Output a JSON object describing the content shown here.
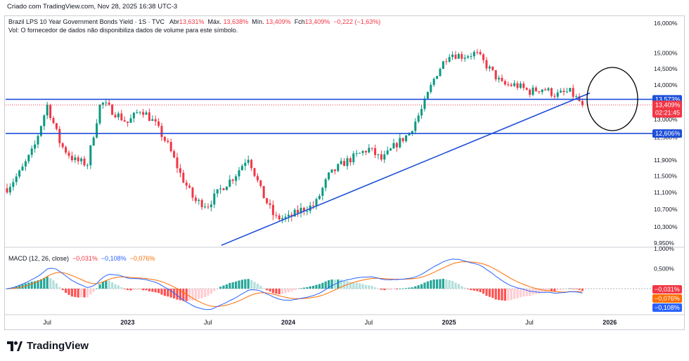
{
  "header": {
    "created_by": "Criado com TradingView.com, Nov 28, 2025 16:38 UTC-3"
  },
  "legend": {
    "symbol": "Brazil LPS 10 Year Government Bonds Yield · 1S · TVC",
    "open_label": "Abr",
    "open_value": "13,631%",
    "high_label": "Máx.",
    "high_value": "13,638%",
    "low_label": "Mín.",
    "low_value": "13,409%",
    "close_label": "Fch",
    "close_value": "13,409%",
    "change": "−0,222 (−1,63%)",
    "volume_note": "Vol: O fornecedor de dados não disponibiliza dados de volume para este símbolo."
  },
  "macd_legend": {
    "name": "MACD (12, 26, close)",
    "hist": "−0,031%",
    "macd": "−0,108%",
    "signal": "−0,076%"
  },
  "branding": {
    "logo_text": "TradingView"
  },
  "colors": {
    "up": "#089981",
    "down": "#f23645",
    "line": "#1e4fd8",
    "macd": "#2962ff",
    "signal": "#ff6d00"
  },
  "chart_data": {
    "type": "candlestick",
    "title": "Brazil LPS 10 Year Government Bonds Yield",
    "timeframe": "1S (weekly)",
    "y_axis": {
      "unit": "%",
      "scale": "log",
      "ticks": [
        "16,000%",
        "15,000%",
        "14,500%",
        "14,000%",
        "13,000%",
        "12,500%",
        "11,900%",
        "11,500%",
        "11,100%",
        "10,700%",
        "10,300%",
        "9,950%"
      ],
      "tick_values": [
        16.0,
        15.0,
        14.5,
        14.0,
        13.0,
        12.5,
        11.9,
        11.5,
        11.1,
        10.7,
        10.3,
        9.95
      ]
    },
    "x_axis": {
      "ticks": [
        "Jul",
        "2023",
        "Jul",
        "2024",
        "Jul",
        "2025",
        "Jul",
        "2026"
      ]
    },
    "last_price": {
      "value": 13.409,
      "label": "13,409%",
      "countdown": "02:21:45"
    },
    "horizontal_lines": [
      {
        "value": 13.573,
        "label": "13,573%"
      },
      {
        "value": 12.606,
        "label": "12,606%"
      }
    ],
    "trendline": {
      "from": {
        "date": "2023-08",
        "value": 9.9
      },
      "to": {
        "date": "2025-11",
        "value": 13.76
      }
    },
    "annotation": "black ellipse around latest candles near trendline break",
    "closes_points": [
      [
        "2022-04",
        11.2
      ],
      [
        "2022-05",
        11.6
      ],
      [
        "2022-06",
        12.2
      ],
      [
        "2022-07",
        13.4
      ],
      [
        "2022-08",
        12.3
      ],
      [
        "2022-09",
        11.9
      ],
      [
        "2022-10",
        11.8
      ],
      [
        "2022-11",
        13.5
      ],
      [
        "2022-12",
        13.2
      ],
      [
        "2023-01",
        12.9
      ],
      [
        "2023-02",
        13.3
      ],
      [
        "2023-03",
        12.9
      ],
      [
        "2023-04",
        12.3
      ],
      [
        "2023-05",
        11.5
      ],
      [
        "2023-06",
        10.9
      ],
      [
        "2023-07",
        10.8
      ],
      [
        "2023-08",
        11.2
      ],
      [
        "2023-09",
        11.5
      ],
      [
        "2023-10",
        12.0
      ],
      [
        "2023-11",
        11.1
      ],
      [
        "2023-12",
        10.5
      ],
      [
        "2024-01",
        10.5
      ],
      [
        "2024-02",
        10.7
      ],
      [
        "2024-03",
        10.8
      ],
      [
        "2024-04",
        11.5
      ],
      [
        "2024-05",
        11.8
      ],
      [
        "2024-06",
        12.0
      ],
      [
        "2024-07",
        12.2
      ],
      [
        "2024-08",
        11.9
      ],
      [
        "2024-09",
        12.3
      ],
      [
        "2024-10",
        12.6
      ],
      [
        "2024-11",
        13.3
      ],
      [
        "2024-12",
        14.3
      ],
      [
        "2025-01",
        15.0
      ],
      [
        "2025-02",
        14.9
      ],
      [
        "2025-03",
        15.0
      ],
      [
        "2025-04",
        14.5
      ],
      [
        "2025-05",
        14.0
      ],
      [
        "2025-06",
        14.0
      ],
      [
        "2025-07",
        13.8
      ],
      [
        "2025-08",
        13.9
      ],
      [
        "2025-09",
        13.7
      ],
      [
        "2025-10",
        13.8
      ],
      [
        "2025-11",
        13.409
      ]
    ],
    "macd": {
      "y_ticks": [
        "1,000%",
        "0,500%"
      ],
      "tick_values": [
        1.0,
        0.5
      ],
      "last": {
        "hist": -0.031,
        "macd": -0.108,
        "signal": -0.076
      },
      "hist_labels": [
        "−0,031%",
        "−0,076%",
        "−0,108%"
      ]
    }
  }
}
